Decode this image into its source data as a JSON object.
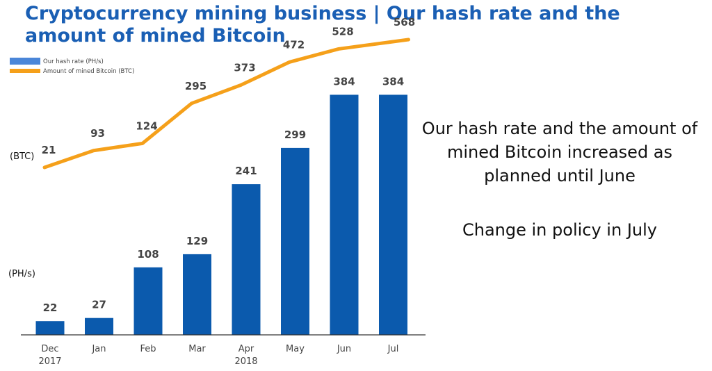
{
  "title": "Cryptocurrency mining business | Our hash rate and the amount of mined Bitcoin",
  "side_text": {
    "line1": "Our hash rate and the amount of mined Bitcoin increased as planned until June",
    "line2": "Change in policy in July"
  },
  "colors": {
    "title": "#1a5fb4",
    "bar": "#0b5aad",
    "line": "#f5a01a",
    "label": "#444444"
  },
  "chart_data": {
    "type": "bar",
    "categories": [
      [
        "Dec",
        "2017"
      ],
      [
        "Jan",
        ""
      ],
      [
        "Feb",
        ""
      ],
      [
        "Mar",
        ""
      ],
      [
        "Apr",
        "2018"
      ],
      [
        "May",
        ""
      ],
      [
        "Jun",
        ""
      ],
      [
        "Jul",
        ""
      ]
    ],
    "series": [
      {
        "name": "Our hash rate (PH/s)",
        "type": "bar",
        "unit": "(PH/s)",
        "values": [
          22,
          27,
          108,
          129,
          241,
          299,
          384,
          384
        ]
      },
      {
        "name": "Amount of mined Bitcoin (BTC)",
        "type": "line",
        "unit": "(BTC)",
        "values": [
          21,
          93,
          124,
          295,
          373,
          472,
          528,
          568
        ]
      }
    ],
    "legend_position": "top-left",
    "grid": false
  }
}
